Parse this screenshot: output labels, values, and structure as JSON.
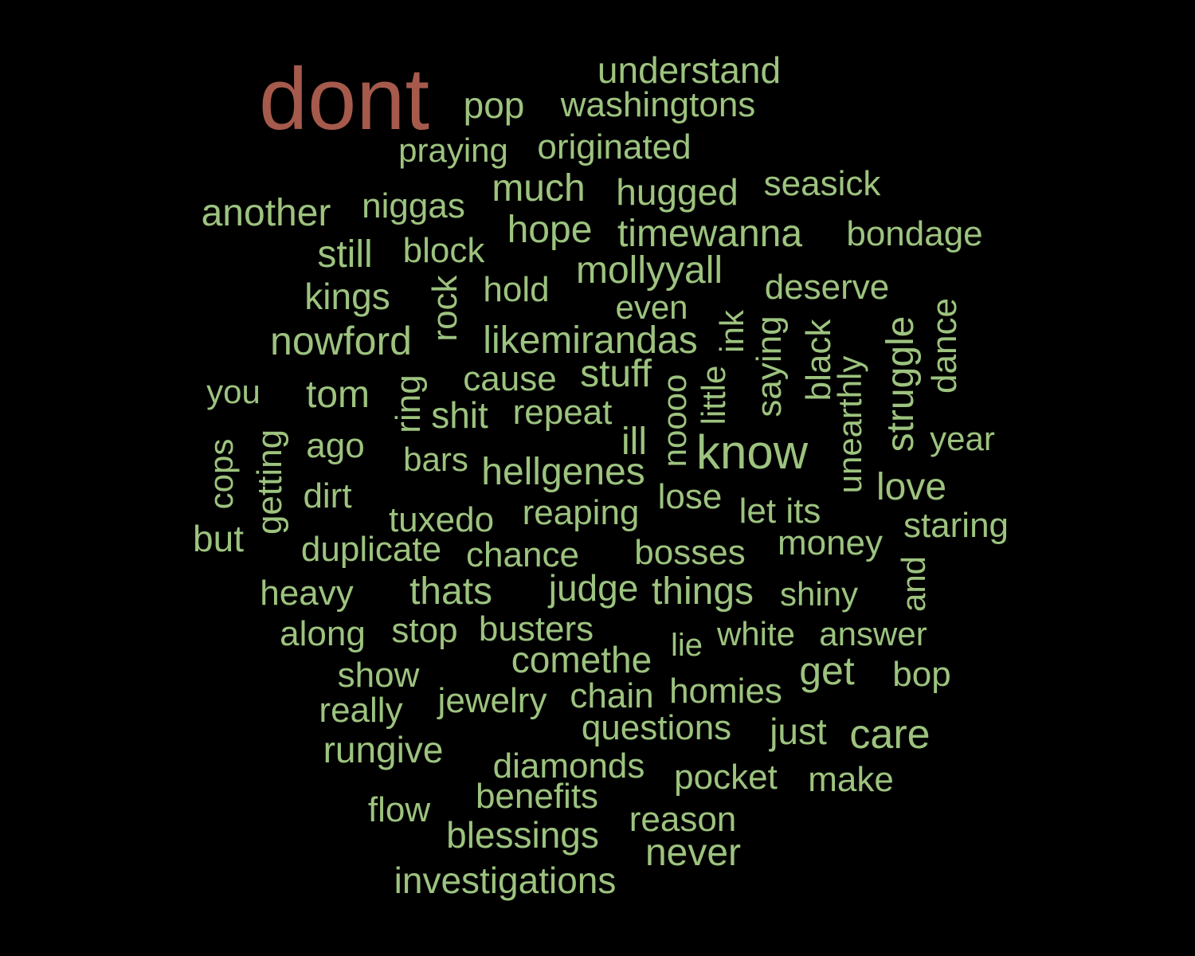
{
  "colors": {
    "background": "#000000",
    "primary": "#9dc37f",
    "highlight": "#a55a4c"
  },
  "words": [
    {
      "text": "dont",
      "color": "#a55a4c"
    },
    {
      "text": "understand",
      "color": "#9dc37f"
    },
    {
      "text": "pop",
      "color": "#9dc37f"
    },
    {
      "text": "washingtons",
      "color": "#9dc37f"
    },
    {
      "text": "praying",
      "color": "#9dc37f"
    },
    {
      "text": "originated",
      "color": "#9dc37f"
    },
    {
      "text": "much",
      "color": "#9dc37f"
    },
    {
      "text": "hugged",
      "color": "#9dc37f"
    },
    {
      "text": "seasick",
      "color": "#9dc37f"
    },
    {
      "text": "another",
      "color": "#9dc37f"
    },
    {
      "text": "niggas",
      "color": "#9dc37f"
    },
    {
      "text": "hope",
      "color": "#9dc37f"
    },
    {
      "text": "timewanna",
      "color": "#9dc37f"
    },
    {
      "text": "bondage",
      "color": "#9dc37f"
    },
    {
      "text": "still",
      "color": "#9dc37f"
    },
    {
      "text": "block",
      "color": "#9dc37f"
    },
    {
      "text": "mollyyall",
      "color": "#9dc37f"
    },
    {
      "text": "kings",
      "color": "#9dc37f"
    },
    {
      "text": "rock",
      "color": "#9dc37f"
    },
    {
      "text": "hold",
      "color": "#9dc37f"
    },
    {
      "text": "deserve",
      "color": "#9dc37f"
    },
    {
      "text": "even",
      "color": "#9dc37f"
    },
    {
      "text": "nowford",
      "color": "#9dc37f"
    },
    {
      "text": "likemirandas",
      "color": "#9dc37f"
    },
    {
      "text": "ink",
      "color": "#9dc37f"
    },
    {
      "text": "saying",
      "color": "#9dc37f"
    },
    {
      "text": "black",
      "color": "#9dc37f"
    },
    {
      "text": "struggle",
      "color": "#9dc37f"
    },
    {
      "text": "dance",
      "color": "#9dc37f"
    },
    {
      "text": "you",
      "color": "#9dc37f"
    },
    {
      "text": "tom",
      "color": "#9dc37f"
    },
    {
      "text": "cause",
      "color": "#9dc37f"
    },
    {
      "text": "stuff",
      "color": "#9dc37f"
    },
    {
      "text": "little",
      "color": "#9dc37f"
    },
    {
      "text": "unearthly",
      "color": "#9dc37f"
    },
    {
      "text": "ring",
      "color": "#9dc37f"
    },
    {
      "text": "shit",
      "color": "#9dc37f"
    },
    {
      "text": "repeat",
      "color": "#9dc37f"
    },
    {
      "text": "noooo",
      "color": "#9dc37f"
    },
    {
      "text": "know",
      "color": "#9dc37f"
    },
    {
      "text": "year",
      "color": "#9dc37f"
    },
    {
      "text": "cops",
      "color": "#9dc37f"
    },
    {
      "text": "getting",
      "color": "#9dc37f"
    },
    {
      "text": "ago",
      "color": "#9dc37f"
    },
    {
      "text": "ill",
      "color": "#9dc37f"
    },
    {
      "text": "bars",
      "color": "#9dc37f"
    },
    {
      "text": "hellgenes",
      "color": "#9dc37f"
    },
    {
      "text": "love",
      "color": "#9dc37f"
    },
    {
      "text": "dirt",
      "color": "#9dc37f"
    },
    {
      "text": "lose",
      "color": "#9dc37f"
    },
    {
      "text": "tuxedo",
      "color": "#9dc37f"
    },
    {
      "text": "reaping",
      "color": "#9dc37f"
    },
    {
      "text": "let its",
      "color": "#9dc37f"
    },
    {
      "text": "staring",
      "color": "#9dc37f"
    },
    {
      "text": "but",
      "color": "#9dc37f"
    },
    {
      "text": "duplicate",
      "color": "#9dc37f"
    },
    {
      "text": "chance",
      "color": "#9dc37f"
    },
    {
      "text": "bosses",
      "color": "#9dc37f"
    },
    {
      "text": "money",
      "color": "#9dc37f"
    },
    {
      "text": "and",
      "color": "#9dc37f"
    },
    {
      "text": "heavy",
      "color": "#9dc37f"
    },
    {
      "text": "thats",
      "color": "#9dc37f"
    },
    {
      "text": "judge",
      "color": "#9dc37f"
    },
    {
      "text": "things",
      "color": "#9dc37f"
    },
    {
      "text": "shiny",
      "color": "#9dc37f"
    },
    {
      "text": "along",
      "color": "#9dc37f"
    },
    {
      "text": "stop",
      "color": "#9dc37f"
    },
    {
      "text": "busters",
      "color": "#9dc37f"
    },
    {
      "text": "lie",
      "color": "#9dc37f"
    },
    {
      "text": "white",
      "color": "#9dc37f"
    },
    {
      "text": "answer",
      "color": "#9dc37f"
    },
    {
      "text": "comethe",
      "color": "#9dc37f"
    },
    {
      "text": "get",
      "color": "#9dc37f"
    },
    {
      "text": "show",
      "color": "#9dc37f"
    },
    {
      "text": "bop",
      "color": "#9dc37f"
    },
    {
      "text": "really",
      "color": "#9dc37f"
    },
    {
      "text": "jewelry",
      "color": "#9dc37f"
    },
    {
      "text": "chain",
      "color": "#9dc37f"
    },
    {
      "text": "homies",
      "color": "#9dc37f"
    },
    {
      "text": "questions",
      "color": "#9dc37f"
    },
    {
      "text": "just",
      "color": "#9dc37f"
    },
    {
      "text": "care",
      "color": "#9dc37f"
    },
    {
      "text": "rungive",
      "color": "#9dc37f"
    },
    {
      "text": "diamonds",
      "color": "#9dc37f"
    },
    {
      "text": "pocket",
      "color": "#9dc37f"
    },
    {
      "text": "make",
      "color": "#9dc37f"
    },
    {
      "text": "flow",
      "color": "#9dc37f"
    },
    {
      "text": "benefits",
      "color": "#9dc37f"
    },
    {
      "text": "reason",
      "color": "#9dc37f"
    },
    {
      "text": "blessings",
      "color": "#9dc37f"
    },
    {
      "text": "never",
      "color": "#9dc37f"
    },
    {
      "text": "investigations",
      "color": "#9dc37f"
    }
  ]
}
